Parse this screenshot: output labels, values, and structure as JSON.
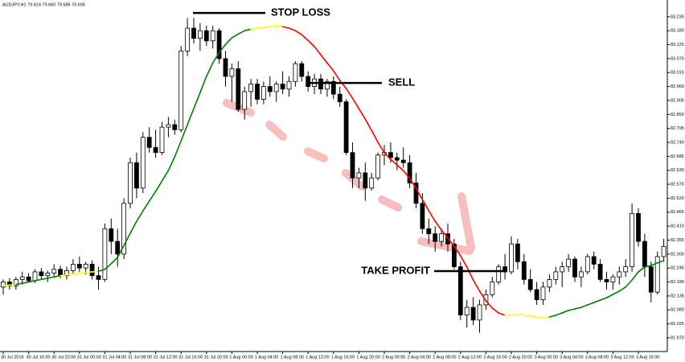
{
  "chart_data": {
    "type": "candlestick",
    "symbol_info": "AUDJPY,H1  79.624 79.660 79.586 79.606",
    "categories": [
      "30 Jul 2018",
      null,
      null,
      null,
      "30 Jul 16:00",
      null,
      null,
      null,
      "30 Jul 20:00",
      null,
      null,
      null,
      "31 Jul 00:00",
      null,
      null,
      null,
      "31 Jul 04:00",
      null,
      null,
      null,
      "31 Jul 08:00",
      null,
      null,
      null,
      "31 Jul 12:00",
      null,
      null,
      null,
      "31 Jul 16:00",
      null,
      null,
      null,
      "31 Jul 20:00",
      null,
      null,
      null,
      "1 Aug 00:00",
      null,
      null,
      null,
      "1 Aug 04:00",
      null,
      null,
      null,
      "1 Aug 08:00",
      null,
      null,
      null,
      "1 Aug 12:00",
      null,
      null,
      null,
      "1 Aug 16:00",
      null,
      null,
      null,
      "1 Aug 20:00",
      null,
      null,
      null,
      "2 Aug 00:00",
      null,
      null,
      null,
      "2 Aug 04:00",
      null,
      null,
      null,
      "2 Aug 08:00",
      null,
      null,
      null,
      "2 Aug 12:00",
      null,
      null,
      null,
      "2 Aug 16:00",
      null,
      null,
      null,
      "2 Aug 20:00",
      null,
      null,
      null,
      "3 Aug 00:00",
      null,
      null,
      null,
      "3 Aug 04:00",
      null,
      null,
      null,
      "3 Aug 08:00",
      null,
      null,
      null,
      "3 Aug 12:00",
      null,
      null,
      null,
      "3 Aug 16:00",
      null,
      null,
      null,
      null
    ],
    "ohlc": [
      [
        82.17,
        82.2,
        82.14,
        82.19
      ],
      [
        82.19,
        82.205,
        82.16,
        82.175
      ],
      [
        82.175,
        82.21,
        82.16,
        82.2
      ],
      [
        82.2,
        82.23,
        82.18,
        82.21
      ],
      [
        82.21,
        82.225,
        82.19,
        82.195
      ],
      [
        82.195,
        82.24,
        82.185,
        82.23
      ],
      [
        82.23,
        82.245,
        82.2,
        82.215
      ],
      [
        82.215,
        82.235,
        82.19,
        82.225
      ],
      [
        82.225,
        82.26,
        82.21,
        82.24
      ],
      [
        82.24,
        82.255,
        82.205,
        82.215
      ],
      [
        82.215,
        82.25,
        82.2,
        82.235
      ],
      [
        82.235,
        82.28,
        82.22,
        82.26
      ],
      [
        82.26,
        82.29,
        82.23,
        82.245
      ],
      [
        82.245,
        82.27,
        82.22,
        82.26
      ],
      [
        82.26,
        82.275,
        82.2,
        82.215
      ],
      [
        82.215,
        82.25,
        82.16,
        82.2
      ],
      [
        82.2,
        82.42,
        82.19,
        82.4
      ],
      [
        82.4,
        82.44,
        82.3,
        82.35
      ],
      [
        82.35,
        82.4,
        82.25,
        82.3
      ],
      [
        82.3,
        82.52,
        82.28,
        82.5
      ],
      [
        82.5,
        82.68,
        82.48,
        82.66
      ],
      [
        82.66,
        82.7,
        82.52,
        82.56
      ],
      [
        82.56,
        82.78,
        82.54,
        82.76
      ],
      [
        82.76,
        82.8,
        82.7,
        82.72
      ],
      [
        82.72,
        82.79,
        82.68,
        82.7
      ],
      [
        82.7,
        82.82,
        82.69,
        82.8
      ],
      [
        82.8,
        82.84,
        82.76,
        82.81
      ],
      [
        82.81,
        82.83,
        82.77,
        82.79
      ],
      [
        82.79,
        83.12,
        82.78,
        83.1
      ],
      [
        83.1,
        83.23,
        83.08,
        83.19
      ],
      [
        83.19,
        83.23,
        83.13,
        83.15
      ],
      [
        83.15,
        83.21,
        83.1,
        83.18
      ],
      [
        83.18,
        83.2,
        83.12,
        83.14
      ],
      [
        83.14,
        83.2,
        83.11,
        83.18
      ],
      [
        83.18,
        83.19,
        83.05,
        83.07
      ],
      [
        83.07,
        83.1,
        82.96,
        83.0
      ],
      [
        83.0,
        83.05,
        82.9,
        83.03
      ],
      [
        83.03,
        83.06,
        82.86,
        82.87
      ],
      [
        82.87,
        82.96,
        82.83,
        82.94
      ],
      [
        82.94,
        82.99,
        82.88,
        82.97
      ],
      [
        82.97,
        82.99,
        82.89,
        82.91
      ],
      [
        82.91,
        82.98,
        82.89,
        82.96
      ],
      [
        82.96,
        83.0,
        82.92,
        82.94
      ],
      [
        82.94,
        82.98,
        82.9,
        82.97
      ],
      [
        82.97,
        83.02,
        82.93,
        82.95
      ],
      [
        82.95,
        83.0,
        82.92,
        82.98
      ],
      [
        82.98,
        83.06,
        82.96,
        83.05
      ],
      [
        83.05,
        83.06,
        82.98,
        83.0
      ],
      [
        83.0,
        83.02,
        82.94,
        82.96
      ],
      [
        82.96,
        83.01,
        82.93,
        82.99
      ],
      [
        82.99,
        83.01,
        82.93,
        82.95
      ],
      [
        82.95,
        82.99,
        82.92,
        82.98
      ],
      [
        82.98,
        83.0,
        82.91,
        82.93
      ],
      [
        82.93,
        82.96,
        82.88,
        82.9
      ],
      [
        82.9,
        82.91,
        82.69,
        82.7
      ],
      [
        82.7,
        82.74,
        82.56,
        82.6
      ],
      [
        82.6,
        82.64,
        82.56,
        82.62
      ],
      [
        82.62,
        82.66,
        82.51,
        82.56
      ],
      [
        82.56,
        82.62,
        82.55,
        82.6
      ],
      [
        82.6,
        82.7,
        82.59,
        82.69
      ],
      [
        82.69,
        82.73,
        82.65,
        82.7
      ],
      [
        82.7,
        82.74,
        82.66,
        82.68
      ],
      [
        82.68,
        82.7,
        82.63,
        82.67
      ],
      [
        82.67,
        82.72,
        82.64,
        82.66
      ],
      [
        82.66,
        82.69,
        82.56,
        82.58
      ],
      [
        82.58,
        82.62,
        82.48,
        82.5
      ],
      [
        82.5,
        82.54,
        82.38,
        82.4
      ],
      [
        82.4,
        82.44,
        82.34,
        82.38
      ],
      [
        82.38,
        82.41,
        82.31,
        82.35
      ],
      [
        82.35,
        82.4,
        82.33,
        82.38
      ],
      [
        82.38,
        82.42,
        82.31,
        82.34
      ],
      [
        82.34,
        82.36,
        82.24,
        82.25
      ],
      [
        82.25,
        82.27,
        82.04,
        82.06
      ],
      [
        82.06,
        82.12,
        82.01,
        82.09
      ],
      [
        82.09,
        82.13,
        82.02,
        82.04
      ],
      [
        82.04,
        82.12,
        81.99,
        82.1
      ],
      [
        82.1,
        82.16,
        82.08,
        82.14
      ],
      [
        82.14,
        82.21,
        82.13,
        82.19
      ],
      [
        82.19,
        82.26,
        82.18,
        82.25
      ],
      [
        82.25,
        82.3,
        82.2,
        82.23
      ],
      [
        82.23,
        82.37,
        82.22,
        82.34
      ],
      [
        82.34,
        82.36,
        82.24,
        82.27
      ],
      [
        82.27,
        82.3,
        82.18,
        82.2
      ],
      [
        82.2,
        82.24,
        82.15,
        82.16
      ],
      [
        82.16,
        82.19,
        82.1,
        82.12
      ],
      [
        82.12,
        82.19,
        82.1,
        82.17
      ],
      [
        82.17,
        82.22,
        82.15,
        82.2
      ],
      [
        82.2,
        82.25,
        82.18,
        82.23
      ],
      [
        82.23,
        82.27,
        82.17,
        82.25
      ],
      [
        82.25,
        82.3,
        82.23,
        82.28
      ],
      [
        82.28,
        82.29,
        82.19,
        82.21
      ],
      [
        82.21,
        82.25,
        82.17,
        82.23
      ],
      [
        82.23,
        82.3,
        82.22,
        82.29
      ],
      [
        82.29,
        82.31,
        82.24,
        82.26
      ],
      [
        82.26,
        82.28,
        82.19,
        82.2
      ],
      [
        82.2,
        82.23,
        82.16,
        82.19
      ],
      [
        82.19,
        82.22,
        82.16,
        82.21
      ],
      [
        82.21,
        82.25,
        82.18,
        82.23
      ],
      [
        82.23,
        82.28,
        82.21,
        82.25
      ],
      [
        82.25,
        82.5,
        82.23,
        82.46
      ],
      [
        82.46,
        82.48,
        82.33,
        82.35
      ],
      [
        82.35,
        82.38,
        82.21,
        82.25
      ],
      [
        82.25,
        82.27,
        82.11,
        82.15
      ],
      [
        82.15,
        82.31,
        82.14,
        82.29
      ],
      [
        82.29,
        82.36,
        82.27,
        82.33
      ]
    ],
    "ma": {
      "up_color": "#008000",
      "down_color": "#ff0000",
      "flat_color": "#ffff00",
      "values": [
        82.175,
        82.178,
        82.18,
        82.185,
        82.19,
        82.195,
        82.2,
        82.205,
        82.21,
        82.215,
        82.218,
        82.222,
        82.225,
        82.228,
        82.23,
        82.232,
        82.24,
        82.262,
        82.287,
        82.334,
        82.382,
        82.429,
        82.47,
        82.509,
        82.547,
        82.588,
        82.629,
        82.683,
        82.746,
        82.81,
        82.873,
        82.936,
        83.0,
        83.053,
        83.094,
        83.126,
        83.152,
        83.167,
        83.18,
        83.186,
        83.19,
        83.193,
        83.196,
        83.199,
        83.196,
        83.19,
        83.18,
        83.164,
        83.142,
        83.117,
        83.085,
        83.053,
        83.022,
        82.984,
        82.952,
        82.914,
        82.873,
        82.832,
        82.787,
        82.74,
        82.699,
        82.673,
        82.651,
        82.629,
        82.597,
        82.559,
        82.515,
        82.471,
        82.429,
        82.395,
        82.363,
        82.331,
        82.293,
        82.249,
        82.198,
        82.154,
        82.116,
        82.087,
        82.068,
        82.059,
        82.059,
        82.062,
        82.059,
        82.056,
        82.052,
        82.049,
        82.052,
        82.059,
        82.068,
        82.078,
        82.084,
        82.09,
        82.1,
        82.109,
        82.119,
        82.128,
        82.141,
        82.154,
        82.17,
        82.198,
        82.23,
        82.249,
        82.255,
        82.265,
        82.274
      ]
    },
    "annotations": [
      {
        "text": "STOP LOSS",
        "value": 83.25
      },
      {
        "text": "SELL",
        "value": 82.974
      },
      {
        "text": "TAKE PROFIT",
        "value": 82.233
      }
    ],
    "ylim": [
      81.916,
      83.301
    ],
    "yticks": [
      {
        "value": 81.97,
        "label": "81.970"
      },
      82.025,
      {
        "value": 82.08,
        "label": "82.080"
      },
      82.135,
      {
        "value": 82.19,
        "label": "82.190"
      },
      82.245,
      {
        "value": 82.3,
        "label": "82.300"
      },
      82.355,
      {
        "value": 82.41,
        "label": "82.410"
      },
      82.465,
      {
        "value": 82.52,
        "label": "82.520"
      },
      82.575,
      {
        "value": 82.63,
        "label": "82.630"
      },
      82.685,
      {
        "value": 82.74,
        "label": "82.740"
      },
      82.795,
      {
        "value": 82.85,
        "label": "82.850"
      },
      82.905,
      {
        "value": 82.96,
        "label": "82.960"
      },
      83.015,
      {
        "value": 83.07,
        "label": "83.070"
      },
      83.125,
      {
        "value": 83.18,
        "label": "83.180"
      },
      83.235
    ],
    "grid": false
  }
}
